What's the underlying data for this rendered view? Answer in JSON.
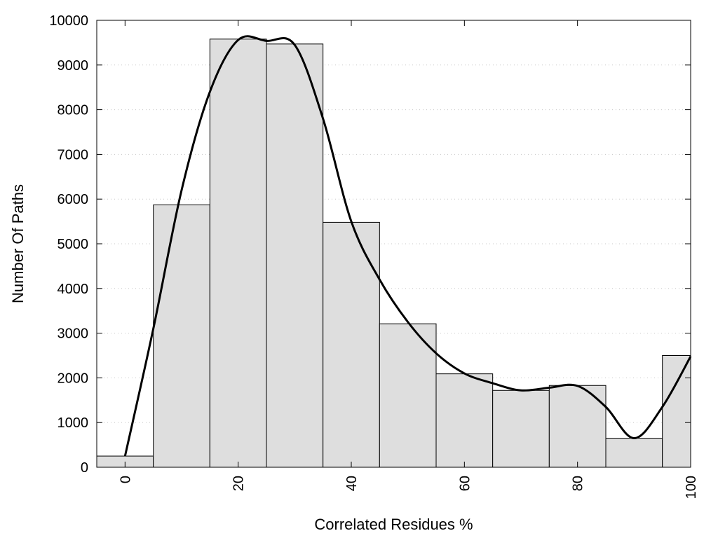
{
  "chart_data": {
    "type": "bar",
    "title": "",
    "xlabel": "Correlated Residues %",
    "ylabel": "Number Of Paths",
    "xlim": [
      -5,
      100
    ],
    "ylim": [
      0,
      10000
    ],
    "grid": true,
    "x": [
      0,
      10,
      20,
      30,
      40,
      50,
      60,
      70,
      80,
      90,
      100
    ],
    "values": [
      250,
      5870,
      9580,
      9470,
      5480,
      3210,
      2090,
      1720,
      1830,
      650,
      2500
    ],
    "bin_width": 10,
    "bar_color": "#dedede",
    "xticks": [
      0,
      20,
      40,
      60,
      80,
      100
    ],
    "xtick_labels": [
      "0",
      "20",
      "40",
      "60",
      "80",
      "100"
    ],
    "yticks": [
      0,
      1000,
      2000,
      3000,
      4000,
      5000,
      6000,
      7000,
      8000,
      9000,
      10000
    ],
    "ytick_labels": [
      "0",
      "1000",
      "2000",
      "3000",
      "4000",
      "5000",
      "6000",
      "7000",
      "8000",
      "9000",
      "10000"
    ],
    "smooth_line": {
      "x": [
        0,
        5,
        10,
        15,
        20,
        25,
        30,
        35,
        40,
        45,
        50,
        55,
        60,
        65,
        70,
        75,
        80,
        85,
        90,
        95,
        100
      ],
      "y": [
        250,
        3100,
        6200,
        8400,
        9560,
        9540,
        9450,
        7800,
        5500,
        4200,
        3250,
        2550,
        2100,
        1880,
        1720,
        1780,
        1820,
        1350,
        650,
        1350,
        2480
      ],
      "color": "#000000"
    }
  }
}
